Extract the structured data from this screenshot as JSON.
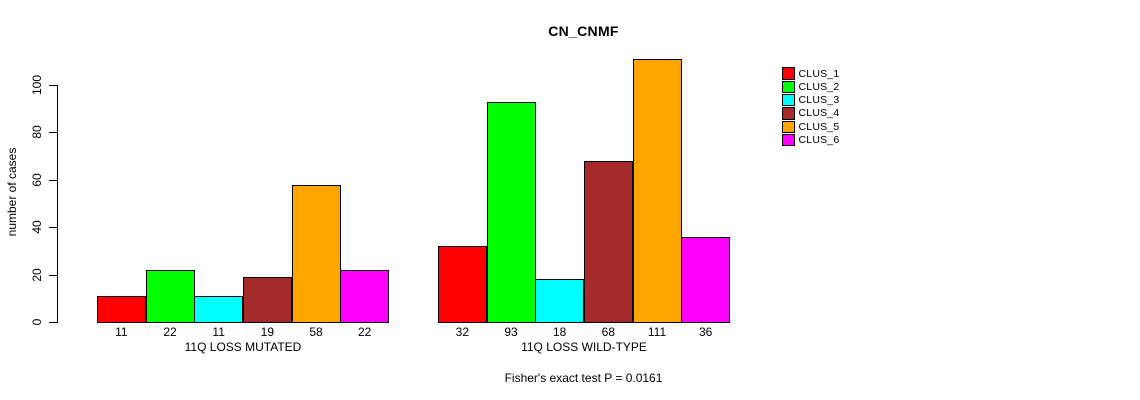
{
  "chart_data": {
    "type": "bar",
    "title": "CN_CNMF",
    "ylabel": "number of cases",
    "xlabel": "",
    "yticks": [
      0,
      20,
      40,
      60,
      80,
      100
    ],
    "ylim": [
      0,
      100
    ],
    "grid": false,
    "legend_position": "right",
    "series_names": [
      "CLUS_1",
      "CLUS_2",
      "CLUS_3",
      "CLUS_4",
      "CLUS_5",
      "CLUS_6"
    ],
    "colors": [
      "#FF0000",
      "#00FF00",
      "#00FFFF",
      "#A52A2A",
      "#FFA500",
      "#FF00FF"
    ],
    "groups": [
      {
        "label": "11Q LOSS MUTATED",
        "values": [
          11,
          22,
          11,
          19,
          58,
          22
        ]
      },
      {
        "label": "11Q LOSS WILD-TYPE",
        "values": [
          32,
          93,
          18,
          68,
          111,
          36
        ]
      }
    ],
    "footnote": "Fisher's exact test P = 0.0161"
  }
}
